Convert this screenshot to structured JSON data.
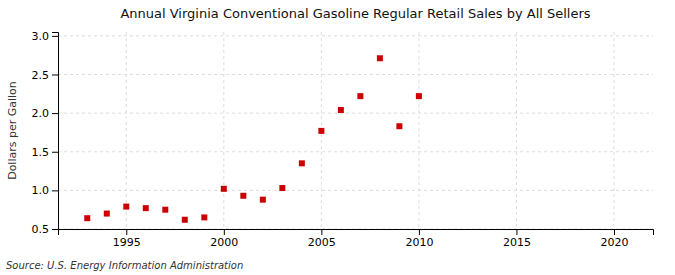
{
  "chart_data": {
    "type": "scatter",
    "title": "Annual Virginia Conventional Gasoline Regular Retail Sales by All Sellers",
    "y_label": "Dollars per Gallon",
    "annotations": [
      "Source: U.S. Energy Information Administration"
    ],
    "x": [
      1993,
      1994,
      1995,
      1996,
      1997,
      1998,
      1999,
      2000,
      2001,
      2002,
      2003,
      2004,
      2005,
      2006,
      2007,
      2008,
      2009,
      2010
    ],
    "values": [
      0.64,
      0.7,
      0.79,
      0.77,
      0.75,
      0.62,
      0.65,
      1.02,
      0.93,
      0.88,
      1.03,
      1.35,
      1.77,
      2.04,
      2.22,
      2.71,
      1.83,
      2.22
    ],
    "color": "#cc0000",
    "marker": "square",
    "xlim": [
      1991.5,
      2022
    ],
    "ylim": [
      0.5,
      3.05
    ],
    "xticks": [
      1995,
      2000,
      2005,
      2010,
      2015,
      2020
    ],
    "yticks": [
      0.5,
      {
        "value": 1.0,
        "label": "1.0"
      },
      1.5,
      {
        "value": 2.0,
        "label": "2.0"
      },
      2.5,
      {
        "value": 3.0,
        "label": "3.0"
      }
    ],
    "grid": true
  }
}
